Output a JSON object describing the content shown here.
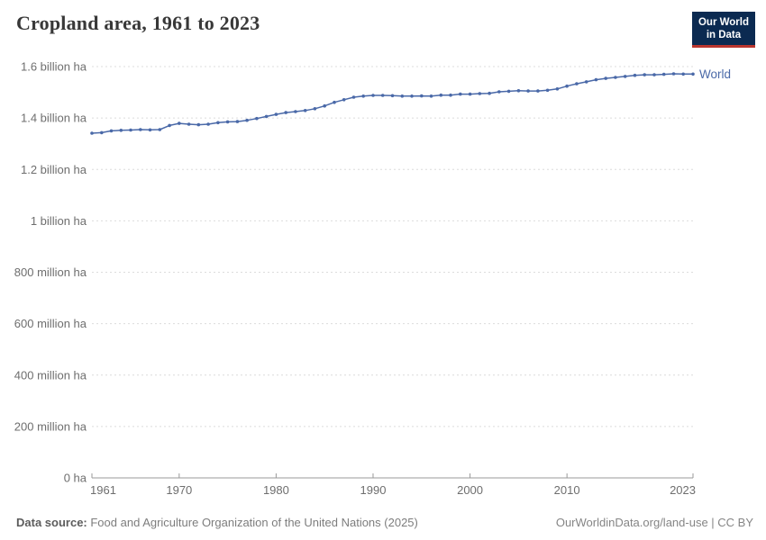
{
  "header": {
    "title": "Cropland area, 1961 to 2023"
  },
  "logo": {
    "line1": "Our World",
    "line2": "in Data",
    "bg_color": "#0b2a51",
    "bar_color": "#b9352e"
  },
  "chart_data": {
    "type": "line",
    "title": "Cropland area, 1961 to 2023",
    "unit": "ha",
    "values_unit": "billion ha",
    "xlim": [
      1961,
      2023
    ],
    "ylim": [
      0,
      1.6
    ],
    "grid": true,
    "legend_position": "end-of-line",
    "xticks": [
      1961,
      1970,
      1980,
      1990,
      2000,
      2010,
      2023
    ],
    "yticks": [
      {
        "v": 0,
        "label": "0 ha"
      },
      {
        "v": 0.2,
        "label": "200 million ha"
      },
      {
        "v": 0.4,
        "label": "400 million ha"
      },
      {
        "v": 0.6,
        "label": "600 million ha"
      },
      {
        "v": 0.8,
        "label": "800 million ha"
      },
      {
        "v": 1.0,
        "label": "1 billion ha"
      },
      {
        "v": 1.2,
        "label": "1.2 billion ha"
      },
      {
        "v": 1.4,
        "label": "1.4 billion ha"
      },
      {
        "v": 1.6,
        "label": "1.6 billion ha"
      }
    ],
    "x": [
      1961,
      1962,
      1963,
      1964,
      1965,
      1966,
      1967,
      1968,
      1969,
      1970,
      1971,
      1972,
      1973,
      1974,
      1975,
      1976,
      1977,
      1978,
      1979,
      1980,
      1981,
      1982,
      1983,
      1984,
      1985,
      1986,
      1987,
      1988,
      1989,
      1990,
      1991,
      1992,
      1993,
      1994,
      1995,
      1996,
      1997,
      1998,
      1999,
      2000,
      2001,
      2002,
      2003,
      2004,
      2005,
      2006,
      2007,
      2008,
      2009,
      2010,
      2011,
      2012,
      2013,
      2014,
      2015,
      2016,
      2017,
      2018,
      2019,
      2020,
      2021,
      2022,
      2023
    ],
    "series": [
      {
        "name": "World",
        "color": "#4a69a8",
        "values": [
          1.341,
          1.343,
          1.35,
          1.352,
          1.353,
          1.355,
          1.354,
          1.355,
          1.371,
          1.379,
          1.376,
          1.374,
          1.376,
          1.382,
          1.385,
          1.386,
          1.391,
          1.398,
          1.406,
          1.414,
          1.421,
          1.425,
          1.429,
          1.436,
          1.447,
          1.461,
          1.471,
          1.481,
          1.485,
          1.488,
          1.488,
          1.487,
          1.485,
          1.485,
          1.486,
          1.485,
          1.489,
          1.489,
          1.493,
          1.493,
          1.495,
          1.496,
          1.502,
          1.504,
          1.506,
          1.505,
          1.505,
          1.508,
          1.513,
          1.524,
          1.533,
          1.541,
          1.549,
          1.554,
          1.558,
          1.562,
          1.566,
          1.568,
          1.568,
          1.57,
          1.572,
          1.571,
          1.571
        ]
      }
    ],
    "colors": {
      "grid": "#dcdcdc",
      "axis": "#999999",
      "tick_label": "#6e6e6e"
    }
  },
  "footer": {
    "source_label": "Data source:",
    "source_text": " Food and Agriculture Organization of the United Nations (2025)",
    "attribution": "OurWorldinData.org/land-use | CC BY"
  }
}
